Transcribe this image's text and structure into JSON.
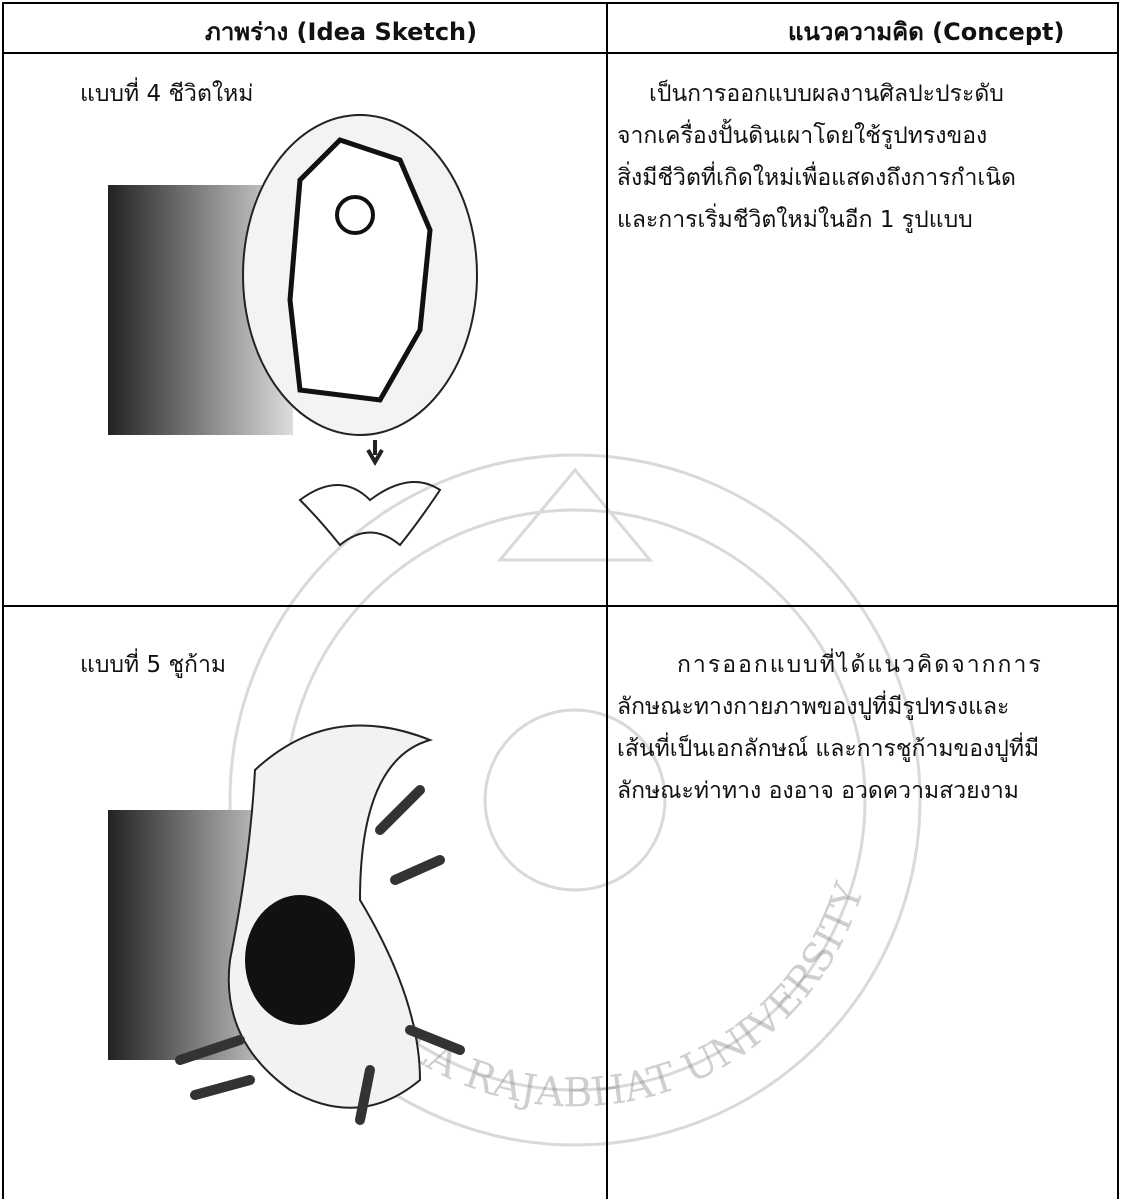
{
  "header": {
    "sketch": "ภาพร่าง  (Idea Sketch)",
    "concept": "แนวความคิด  (Concept)"
  },
  "rows": [
    {
      "sketch_label": "แบบที่ 4  ชีวิตใหม่",
      "concept_lines": [
        "เป็นการออกแบบผลงานศิลปะประดับ",
        "จากเครื่องปั้นดินเผาโดยใช้รูปทรงของ",
        "สิ่งมีชีวิตที่เกิดใหม่เพื่อแสดงถึงการกำเนิด",
        "และการเริ่มชีวิตใหม่ในอีก 1 รูปแบบ"
      ]
    },
    {
      "sketch_label": "แบบที่ 5  ชูก้าม",
      "concept_lines": [
        "การออกแบบที่ได้แนวคิดจากการ",
        "ลักษณะทางกายภาพของปูที่มีรูปทรงและ",
        "เส้นที่เป็นเอกลักษณ์ และการชูก้ามของปูที่มี",
        "ลักษณะท่าทาง องอาจ อวดความสวยงาม"
      ]
    }
  ],
  "watermark": "SONGKHLA RAJABHAT UNIVERSITY"
}
